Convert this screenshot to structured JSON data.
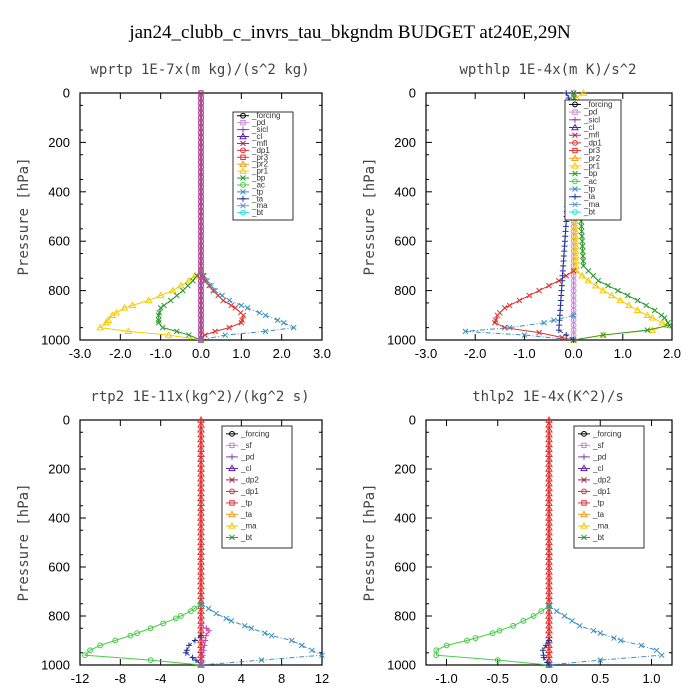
{
  "figure_title": "jan24_clubb_c_invrs_tau_bkgndm  BUDGET at240E,29N",
  "chart_data": [
    {
      "type": "line",
      "title": "wprtp  1E-7x(m kg)/(s^2 kg)",
      "ylabel": "Pressure [hPa]",
      "xlim": [
        -3.0,
        3.0
      ],
      "ylim": [
        1000,
        0
      ],
      "xticks": [
        "-3.0",
        "-2.0",
        "-1.0",
        "0.0",
        "1.0",
        "2.0",
        "3.0"
      ],
      "yticks": [
        "0",
        "200",
        "400",
        "600",
        "800",
        "1000"
      ],
      "legend": [
        "_forcing",
        "_pd",
        "_sicl",
        "_cl",
        "_mfl",
        "_dp1",
        "_pr3",
        "_pr2",
        "_pr1",
        "_bp",
        "_ac",
        "_tp",
        "_ta",
        "_ma",
        "_bt"
      ],
      "series": [
        {
          "name": "_forcing",
          "color": "#000000",
          "marker": "circle",
          "p": [
            0,
            1000
          ],
          "x": [
            0,
            0
          ]
        },
        {
          "name": "_pr1",
          "color": "#f5cc00",
          "marker": "triangle",
          "p": [
            720,
            760,
            800,
            840,
            870,
            900,
            930,
            950,
            965,
            980,
            1000
          ],
          "x": [
            0.0,
            -0.3,
            -0.7,
            -1.3,
            -1.9,
            -2.2,
            -2.35,
            -2.5,
            -1.8,
            -0.8,
            0.0
          ]
        },
        {
          "name": "_bp",
          "color": "#2a9a2a",
          "marker": "x",
          "p": [
            720,
            760,
            800,
            840,
            870,
            900,
            930,
            950,
            965,
            980,
            1000
          ],
          "x": [
            0.0,
            -0.2,
            -0.45,
            -0.75,
            -1.0,
            -1.05,
            -1.05,
            -0.95,
            -0.6,
            -0.3,
            0.0
          ]
        },
        {
          "name": "_pr3",
          "color": "#e03030",
          "marker": "x",
          "p": [
            720,
            760,
            800,
            840,
            870,
            900,
            930,
            950,
            965,
            980,
            1000
          ],
          "x": [
            0.0,
            0.1,
            0.3,
            0.55,
            0.85,
            1.05,
            1.0,
            0.7,
            0.35,
            0.1,
            0.0
          ]
        },
        {
          "name": "_tp",
          "color": "#3a8fc0",
          "marker": "x",
          "p": [
            720,
            760,
            800,
            840,
            870,
            900,
            930,
            950,
            965,
            980,
            1000
          ],
          "x": [
            0.0,
            0.15,
            0.35,
            0.7,
            1.15,
            1.6,
            2.05,
            2.3,
            1.6,
            0.6,
            0.0
          ]
        },
        {
          "name": "_dp1",
          "color": "#cc44aa",
          "marker": "square",
          "p": [
            0,
            1000
          ],
          "x": [
            0,
            0
          ]
        }
      ]
    },
    {
      "type": "line",
      "title": "wpthlp  1E-4x(m K)/s^2",
      "ylabel": "Pressure [hPa]",
      "xlim": [
        -3.0,
        2.0
      ],
      "ylim": [
        1000,
        0
      ],
      "xticks": [
        "-3.0",
        "-2.0",
        "-1.0",
        "0.0",
        "1.0",
        "2.0"
      ],
      "yticks": [
        "0",
        "200",
        "400",
        "600",
        "800",
        "1000"
      ],
      "legend": [
        "_forcing",
        "_pd",
        "_sicl",
        "_cl",
        "_mfl",
        "_dp1",
        "_pr3",
        "_pr2",
        "_pr1",
        "_bp",
        "_ac",
        "_tp",
        "_ta",
        "_ma",
        "_bt"
      ],
      "series": [
        {
          "name": "_forcing",
          "color": "#c888d8",
          "marker": "circle",
          "p": [
            0,
            1000
          ],
          "x": [
            0,
            0
          ]
        },
        {
          "name": "_pr1",
          "color": "#f5cc00",
          "marker": "triangle",
          "p": [
            0,
            20,
            60,
            720,
            760,
            800,
            840,
            880,
            910,
            940,
            960,
            980,
            1000
          ],
          "x": [
            0.2,
            0.05,
            0.0,
            0.05,
            0.3,
            0.6,
            0.95,
            1.3,
            1.6,
            1.9,
            1.6,
            0.6,
            0.0
          ]
        },
        {
          "name": "_bp",
          "color": "#2a9a2a",
          "marker": "x",
          "p": [
            0,
            100,
            300,
            500,
            700,
            760,
            800,
            840,
            880,
            910,
            940,
            960,
            980,
            1000
          ],
          "x": [
            0.0,
            0.05,
            0.1,
            0.15,
            0.2,
            0.5,
            0.9,
            1.3,
            1.65,
            1.85,
            1.95,
            1.5,
            0.6,
            0.0
          ]
        },
        {
          "name": "_pr3",
          "color": "#e03030",
          "marker": "x",
          "p": [
            720,
            760,
            800,
            840,
            870,
            900,
            930,
            950,
            970,
            1000
          ],
          "x": [
            0.0,
            -0.3,
            -0.7,
            -1.1,
            -1.4,
            -1.55,
            -1.6,
            -1.4,
            -0.7,
            0.0
          ]
        },
        {
          "name": "_tp",
          "color": "#3a8fc0",
          "marker": "x",
          "p": [
            900,
            930,
            950,
            965,
            980,
            1000
          ],
          "x": [
            0.0,
            -0.6,
            -1.3,
            -2.2,
            -1.0,
            0.0
          ]
        },
        {
          "name": "_ta",
          "color": "#223399",
          "marker": "plus",
          "p": [
            0,
            40,
            80,
            960,
            1000
          ],
          "x": [
            -0.15,
            -0.05,
            0.0,
            -0.3,
            0.0
          ]
        }
      ]
    },
    {
      "type": "line",
      "title": "rtp2  1E-11x(kg^2)/(kg^2 s)",
      "ylabel": "Pressure [hPa]",
      "xlim": [
        -12,
        12
      ],
      "ylim": [
        1000,
        0
      ],
      "xticks": [
        "-12",
        "-8",
        "-4",
        "0",
        "4",
        "8",
        "12"
      ],
      "yticks": [
        "0",
        "200",
        "400",
        "600",
        "800",
        "1000"
      ],
      "legend": [
        "_forcing",
        "_sf",
        "_pd",
        "_cl",
        "_dp2",
        "_dp1",
        "_tp",
        "_ta",
        "_ma",
        "_bt"
      ],
      "series": [
        {
          "name": "_forcing",
          "color": "#e03030",
          "marker": "triangle",
          "p": [
            0,
            1000
          ],
          "x": [
            0,
            0
          ]
        },
        {
          "name": "_dp1",
          "color": "#44cc44",
          "marker": "circle",
          "p": [
            750,
            780,
            810,
            850,
            880,
            900,
            920,
            940,
            960,
            980,
            1000
          ],
          "x": [
            0,
            -1,
            -2.5,
            -5,
            -7,
            -8.5,
            -10,
            -11,
            -11.5,
            -5,
            0
          ]
        },
        {
          "name": "_tp",
          "color": "#3a8fc0",
          "marker": "x",
          "p": [
            750,
            790,
            820,
            850,
            880,
            900,
            920,
            940,
            960,
            980,
            1000
          ],
          "x": [
            0,
            1.5,
            3,
            5,
            7,
            9,
            10,
            11,
            12,
            6,
            0
          ]
        },
        {
          "name": "_ta",
          "color": "#223399",
          "marker": "plus",
          "p": [
            880,
            920,
            950,
            980,
            1000
          ],
          "x": [
            0,
            -1.2,
            -1.5,
            -0.5,
            0
          ]
        },
        {
          "name": "_sf",
          "color": "#cc44aa",
          "marker": "plus",
          "p": [
            830,
            860,
            880,
            1000
          ],
          "x": [
            0,
            0.8,
            0.5,
            0
          ]
        }
      ]
    },
    {
      "type": "line",
      "title": "thlp2  1E-4x(K^2)/s",
      "ylabel": "Pressure [hPa]",
      "xlim": [
        -1.2,
        1.2
      ],
      "ylim": [
        1000,
        0
      ],
      "xticks": [
        "-1.0",
        "-0.5",
        "0.0",
        "0.5",
        "1.0"
      ],
      "yticks": [
        "0",
        "200",
        "400",
        "600",
        "800",
        "1000"
      ],
      "legend": [
        "_forcing",
        "_sf",
        "_pd",
        "_cl",
        "_dp2",
        "_dp1",
        "_tp",
        "_ta",
        "_ma",
        "_bt"
      ],
      "series": [
        {
          "name": "_forcing",
          "color": "#e03030",
          "marker": "triangle",
          "p": [
            0,
            1000
          ],
          "x": [
            0,
            0
          ]
        },
        {
          "name": "_dp1",
          "color": "#44cc44",
          "marker": "circle",
          "p": [
            760,
            800,
            840,
            870,
            900,
            920,
            940,
            960,
            980,
            1000
          ],
          "x": [
            0,
            -0.15,
            -0.35,
            -0.55,
            -0.8,
            -1.0,
            -1.1,
            -1.1,
            -0.5,
            0
          ]
        },
        {
          "name": "_tp",
          "color": "#3a8fc0",
          "marker": "x",
          "p": [
            760,
            800,
            840,
            870,
            900,
            920,
            940,
            960,
            980,
            1000
          ],
          "x": [
            0,
            0.15,
            0.3,
            0.5,
            0.7,
            0.9,
            1.05,
            1.1,
            0.5,
            0
          ]
        },
        {
          "name": "_ta",
          "color": "#223399",
          "marker": "plus",
          "p": [
            900,
            940,
            970,
            1000
          ],
          "x": [
            0,
            -0.06,
            -0.05,
            0
          ]
        }
      ]
    }
  ]
}
